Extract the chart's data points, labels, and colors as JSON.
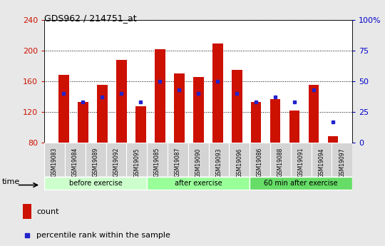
{
  "title": "GDS962 / 214751_at",
  "samples": [
    "GSM19083",
    "GSM19084",
    "GSM19089",
    "GSM19092",
    "GSM19095",
    "GSM19085",
    "GSM19087",
    "GSM19090",
    "GSM19093",
    "GSM19096",
    "GSM19086",
    "GSM19088",
    "GSM19091",
    "GSM19094",
    "GSM19097"
  ],
  "groups": [
    {
      "label": "before exercise",
      "color": "#ccffcc",
      "indices": [
        0,
        1,
        2,
        3,
        4
      ]
    },
    {
      "label": "after exercise",
      "color": "#99ff99",
      "indices": [
        5,
        6,
        7,
        8,
        9
      ]
    },
    {
      "label": "60 min after exercise",
      "color": "#66dd66",
      "indices": [
        10,
        11,
        12,
        13,
        14
      ]
    }
  ],
  "bar_counts": [
    168,
    133,
    155,
    188,
    127,
    202,
    170,
    165,
    209,
    175,
    133,
    137,
    122,
    155,
    88
  ],
  "percentile_ranks": [
    40,
    33,
    37,
    40,
    33,
    50,
    43,
    40,
    50,
    40,
    33,
    37,
    33,
    43,
    17
  ],
  "bar_color": "#cc1100",
  "percentile_color": "#2222cc",
  "ylim_left": [
    80,
    240
  ],
  "ylim_right": [
    0,
    100
  ],
  "yticks_left": [
    80,
    120,
    160,
    200,
    240
  ],
  "yticks_right": [
    0,
    25,
    50,
    75,
    100
  ],
  "bar_width": 0.55,
  "bg_color": "#e8e8e8",
  "plot_bg": "#ffffff",
  "right_axis_color": "#0000cc",
  "left_axis_color": "#cc1100",
  "time_label": "time",
  "legend_count": "count",
  "legend_percentile": "percentile rank within the sample"
}
